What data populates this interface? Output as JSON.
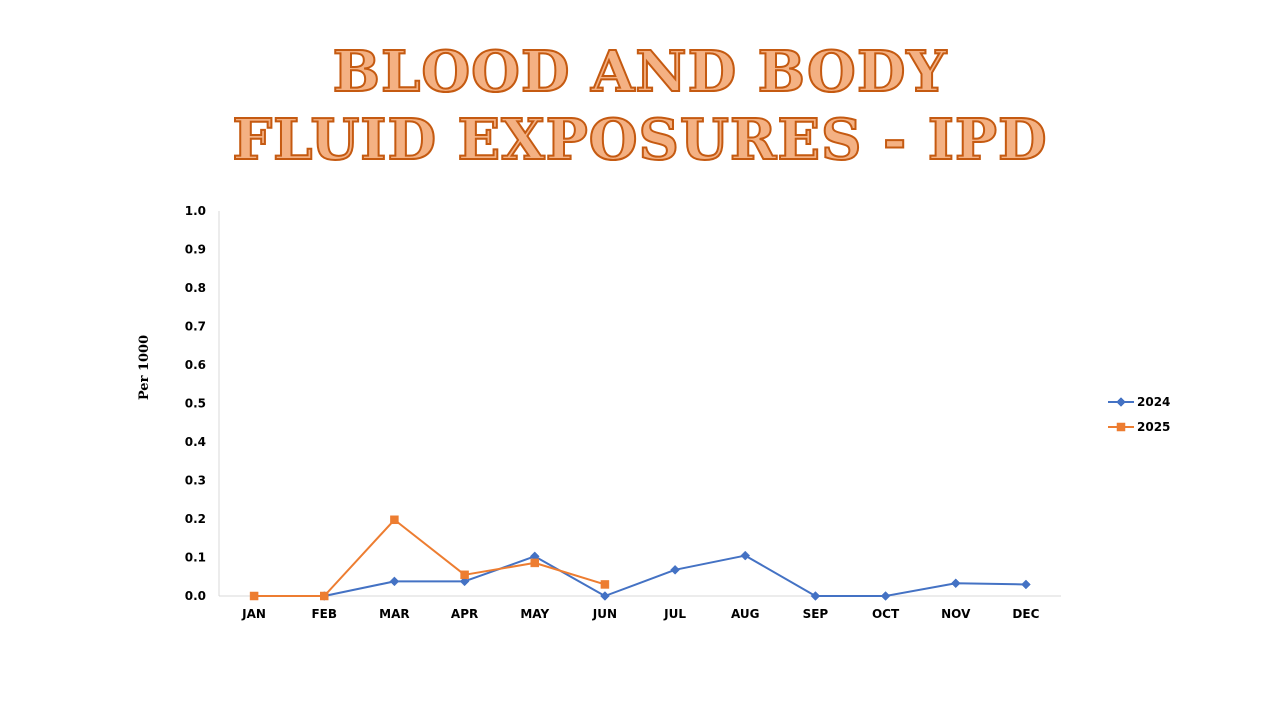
{
  "slide": {
    "title_line1": "BLOOD AND BODY",
    "title_line2": "FLUID EXPOSURES - IPD"
  },
  "chart_data": {
    "type": "line",
    "title": "BLOOD AND BODY FLUID EXPOSURES - IPD",
    "xlabel": "",
    "ylabel": "Per 1000",
    "ylim": [
      0,
      1.0
    ],
    "yticks": [
      "0.0",
      "0.1",
      "0.2",
      "0.3",
      "0.4",
      "0.5",
      "0.6",
      "0.7",
      "0.8",
      "0.9",
      "1.0"
    ],
    "categories": [
      "JAN",
      "FEB",
      "MAR",
      "APR",
      "MAY",
      "JUN",
      "JUL",
      "AUG",
      "SEP",
      "OCT",
      "NOV",
      "DEC"
    ],
    "grid": false,
    "legend_position": "right",
    "series": [
      {
        "name": "2024",
        "color": "#4472c4",
        "marker": "diamond",
        "values": [
          null,
          0,
          0.038,
          0.038,
          0.103,
          0,
          0.068,
          0.105,
          0,
          0,
          0.033,
          0.03
        ]
      },
      {
        "name": "2025",
        "color": "#ed7d31",
        "marker": "square",
        "values": [
          0,
          0,
          0.198,
          0.055,
          0.086,
          0.03,
          null,
          null,
          null,
          null,
          null,
          null
        ]
      }
    ]
  }
}
